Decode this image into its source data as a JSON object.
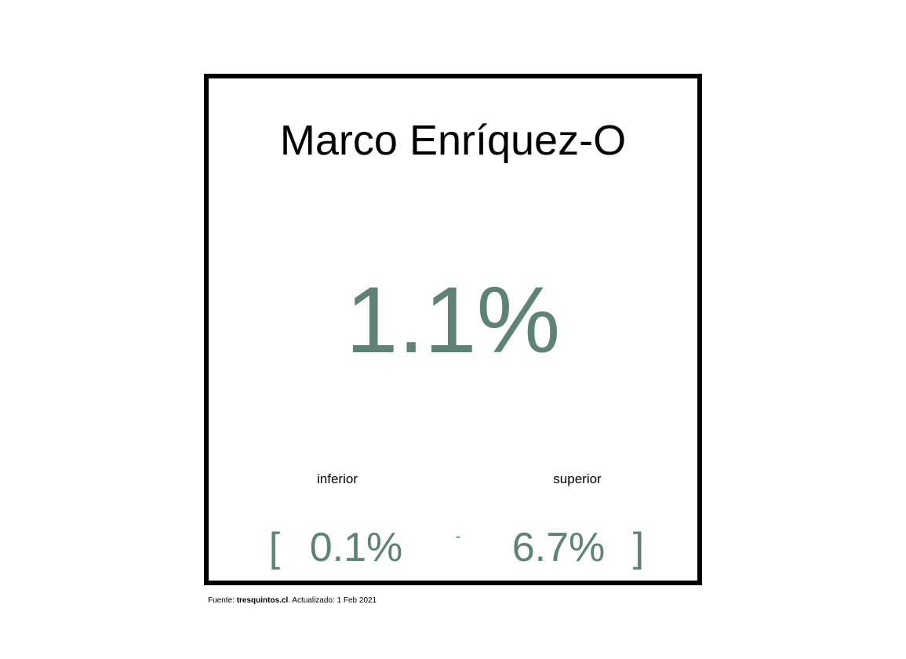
{
  "card": {
    "title": "Marco Enríquez-O",
    "main_value": "1.1%",
    "lower_label": "inferior",
    "upper_label": "superior",
    "bracket_open": "[",
    "lower_value": "0.1%",
    "dash": "-",
    "upper_value": "6.7%",
    "bracket_close": "]"
  },
  "footer": {
    "source_label": "Fuente: ",
    "source_name": "tresquintos.cl",
    "updated_text": ". Actualizado: 1 Feb 2021"
  },
  "colors": {
    "accent": "#5e8275",
    "border": "#000000",
    "text": "#000000"
  }
}
